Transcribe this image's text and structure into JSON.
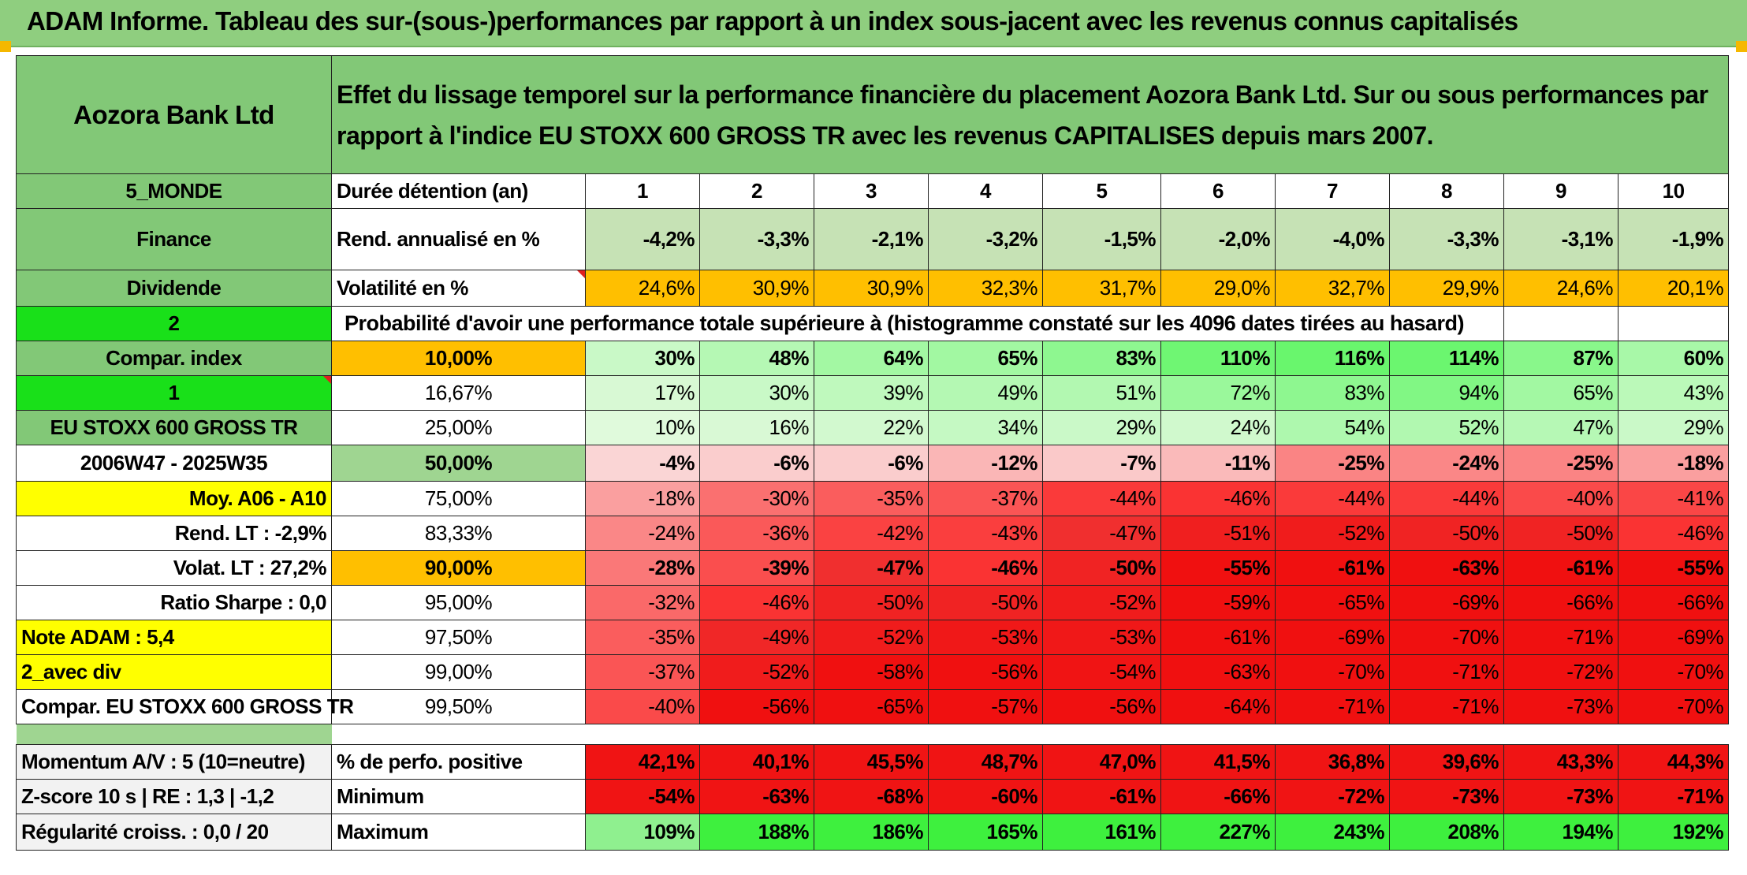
{
  "title": "ADAM Informe. Tableau des sur-(sous-)performances par rapport à un index sous-jacent avec les revenus connus capitalisés",
  "header": {
    "company": "Aozora Bank Ltd",
    "description": "Effet du lissage temporel sur la performance financière du placement Aozora Bank Ltd. Sur ou sous performances par rapport à l'indice EU STOXX 600 GROSS TR avec les revenus CAPITALISES depuis mars 2007."
  },
  "left_labels": {
    "region": "5_MONDE",
    "sector": "Finance",
    "dividend": "Dividende",
    "two": "2",
    "compar_index": "Compar. index",
    "one": "1",
    "index_name": "EU STOXX 600 GROSS TR",
    "period": "2006W47 - 2025W35",
    "moy": "Moy. A06 - A10",
    "rend_lt": "Rend. LT :    -2,9%",
    "volat_lt": "Volat. LT :    27,2%",
    "sharpe": "Ratio Sharpe :    0,0",
    "note": "Note ADAM : 5,4",
    "avec_div": "2_avec div",
    "compar_full": "Compar. EU STOXX 600 GROSS TR",
    "momentum": "Momentum A/V : 5 (10=neutre)",
    "zscore": "Z-score 10 s | RE : 1,3 | -1,2",
    "regularite": "Régularité croiss. : 0,0 / 20"
  },
  "row_labels": {
    "duree": "Durée détention (an)",
    "rend": "Rend. annualisé en %",
    "vol": "Volatilité en %",
    "proba": "Probabilité d'avoir une performance totale supérieure à (histogramme constaté sur les 4096 dates tirées au hasard)",
    "pct_pos": "% de perfo. positive",
    "minimum": "Minimum",
    "maximum": "Maximum"
  },
  "years": [
    "1",
    "2",
    "3",
    "4",
    "5",
    "6",
    "7",
    "8",
    "9",
    "10"
  ],
  "rend": [
    "-4,2%",
    "-3,3%",
    "-2,1%",
    "-3,2%",
    "-1,5%",
    "-2,0%",
    "-4,0%",
    "-3,3%",
    "-3,1%",
    "-1,9%"
  ],
  "vol": [
    "24,6%",
    "30,9%",
    "30,9%",
    "32,3%",
    "31,7%",
    "29,0%",
    "32,7%",
    "29,9%",
    "24,6%",
    "20,1%"
  ],
  "prob_rows": [
    {
      "pct": "10,00%",
      "vals": [
        "30%",
        "48%",
        "64%",
        "65%",
        "83%",
        "110%",
        "116%",
        "114%",
        "87%",
        "60%"
      ]
    },
    {
      "pct": "16,67%",
      "vals": [
        "17%",
        "30%",
        "39%",
        "49%",
        "51%",
        "72%",
        "83%",
        "94%",
        "65%",
        "43%"
      ]
    },
    {
      "pct": "25,00%",
      "vals": [
        "10%",
        "16%",
        "22%",
        "34%",
        "29%",
        "24%",
        "54%",
        "52%",
        "47%",
        "29%"
      ]
    },
    {
      "pct": "50,00%",
      "vals": [
        "-4%",
        "-6%",
        "-6%",
        "-12%",
        "-7%",
        "-11%",
        "-25%",
        "-24%",
        "-25%",
        "-18%"
      ]
    },
    {
      "pct": "75,00%",
      "vals": [
        "-18%",
        "-30%",
        "-35%",
        "-37%",
        "-44%",
        "-46%",
        "-44%",
        "-44%",
        "-40%",
        "-41%"
      ]
    },
    {
      "pct": "83,33%",
      "vals": [
        "-24%",
        "-36%",
        "-42%",
        "-43%",
        "-47%",
        "-51%",
        "-52%",
        "-50%",
        "-50%",
        "-46%"
      ]
    },
    {
      "pct": "90,00%",
      "vals": [
        "-28%",
        "-39%",
        "-47%",
        "-46%",
        "-50%",
        "-55%",
        "-61%",
        "-63%",
        "-61%",
        "-55%"
      ]
    },
    {
      "pct": "95,00%",
      "vals": [
        "-32%",
        "-46%",
        "-50%",
        "-50%",
        "-52%",
        "-59%",
        "-65%",
        "-69%",
        "-66%",
        "-66%"
      ]
    },
    {
      "pct": "97,50%",
      "vals": [
        "-35%",
        "-49%",
        "-52%",
        "-53%",
        "-53%",
        "-61%",
        "-69%",
        "-70%",
        "-71%",
        "-69%"
      ]
    },
    {
      "pct": "99,00%",
      "vals": [
        "-37%",
        "-52%",
        "-58%",
        "-56%",
        "-54%",
        "-63%",
        "-70%",
        "-71%",
        "-72%",
        "-70%"
      ]
    },
    {
      "pct": "99,50%",
      "vals": [
        "-40%",
        "-56%",
        "-65%",
        "-57%",
        "-56%",
        "-64%",
        "-71%",
        "-71%",
        "-73%",
        "-70%"
      ]
    }
  ],
  "pct_pos": [
    "42,1%",
    "40,1%",
    "45,5%",
    "48,7%",
    "47,0%",
    "41,5%",
    "36,8%",
    "39,6%",
    "43,3%",
    "44,3%"
  ],
  "minimum": [
    "-54%",
    "-63%",
    "-68%",
    "-60%",
    "-61%",
    "-66%",
    "-72%",
    "-73%",
    "-73%",
    "-71%"
  ],
  "maximum": [
    "109%",
    "188%",
    "186%",
    "165%",
    "161%",
    "227%",
    "243%",
    "208%",
    "194%",
    "192%"
  ],
  "colors": {
    "header_green": "#82c877",
    "title_green": "#8fce7f",
    "bright_green": "#19e019",
    "yellow": "#ffff00",
    "orange": "#ffbf00",
    "red_text": "#e01010",
    "pale_green": "#c6e2b5",
    "deep_red": "#f01010"
  }
}
